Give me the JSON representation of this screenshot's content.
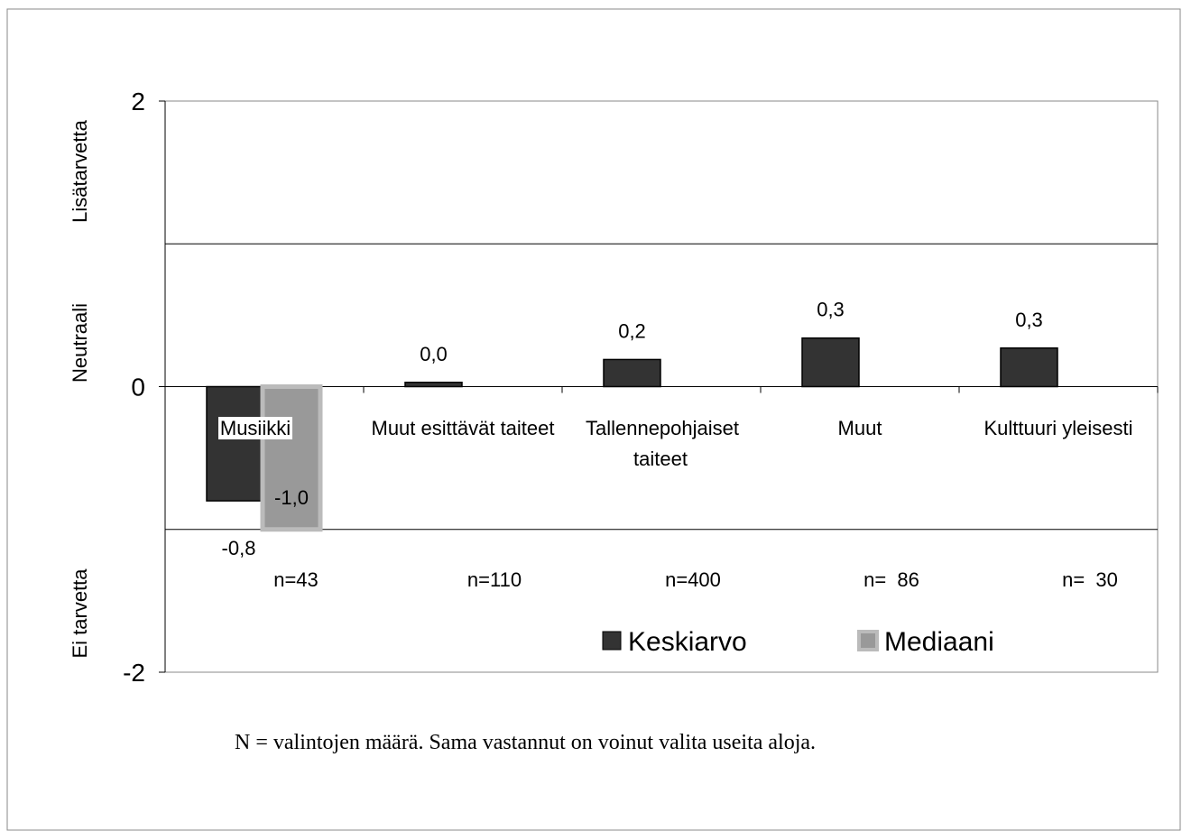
{
  "chart_data": {
    "type": "bar",
    "categories": [
      "Musiikki",
      "Muut esittävät taiteet",
      "Tallennepohjaiset taiteet",
      "Muut",
      "Kulttuuri yleisesti"
    ],
    "series": [
      {
        "name": "Keskiarvo",
        "color": "#333333",
        "values": [
          -0.8,
          0.03,
          0.19,
          0.34,
          0.27
        ],
        "value_labels": [
          "-0,8",
          "0,0",
          "0,2",
          "0,3",
          "0,3"
        ]
      },
      {
        "name": "Mediaani",
        "color": "#999999",
        "values": [
          -1.0,
          null,
          null,
          null,
          null
        ],
        "value_labels": [
          "-1,0",
          null,
          null,
          null,
          null
        ]
      }
    ],
    "n_labels": [
      "n=43",
      "n=110",
      "n=400",
      "n=  86",
      "n=  30"
    ],
    "ylim": [
      -2,
      2
    ],
    "yticks": [
      -2,
      0,
      2
    ],
    "gridlines": [
      -1,
      1
    ],
    "y_side_labels": [
      "Lisätarvetta",
      "Neutraali",
      "Ei tarvetta"
    ],
    "note": "N = valintojen määrä. Sama vastannut on voinut valita useita aloja."
  }
}
